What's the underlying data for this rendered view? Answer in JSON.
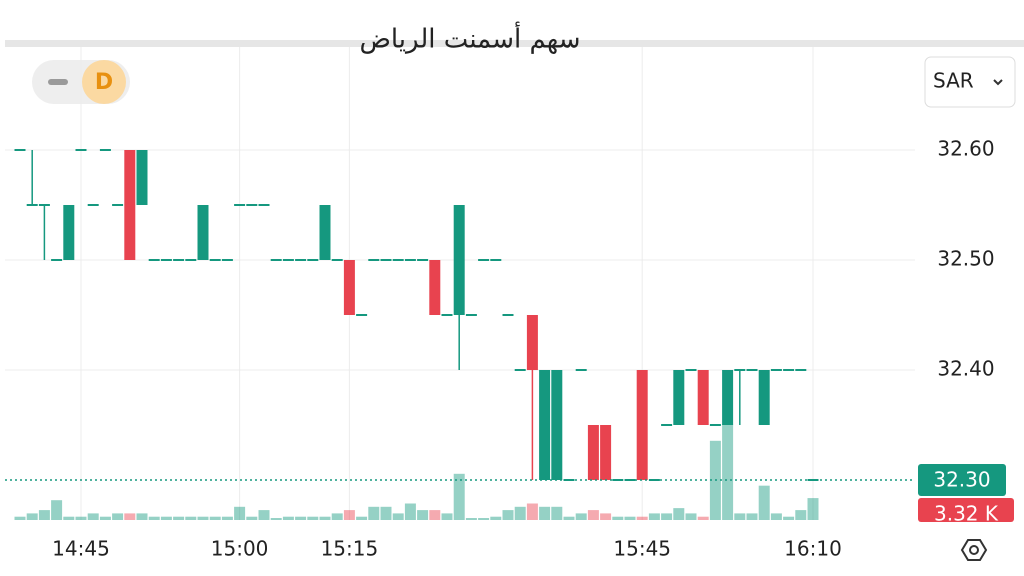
{
  "chart_data": {
    "type": "candlestick",
    "title": "سهم أسمنت الرياض",
    "interval": "D",
    "currency": "SAR",
    "up_color": "#15987f",
    "down_color": "#e8434f",
    "categories": [
      null,
      null,
      null,
      null,
      null,
      "14:45",
      null,
      null,
      null,
      null,
      null,
      null,
      null,
      null,
      null,
      null,
      null,
      null,
      "15:00",
      null,
      null,
      null,
      null,
      null,
      null,
      null,
      null,
      "15:15",
      null,
      null,
      null,
      null,
      null,
      null,
      null,
      null,
      null,
      null,
      null,
      null,
      null,
      null,
      null,
      null,
      null,
      null,
      null,
      null,
      null,
      null,
      null,
      "15:45",
      null,
      null,
      null,
      null,
      null,
      null,
      null,
      null,
      null,
      null,
      null,
      null,
      null,
      "16:10"
    ],
    "open": [
      32.6,
      32.55,
      32.55,
      32.5,
      32.5,
      32.6,
      32.55,
      32.6,
      32.55,
      32.6,
      32.55,
      32.5,
      32.5,
      32.5,
      32.5,
      32.5,
      32.5,
      32.5,
      32.55,
      32.55,
      32.55,
      32.5,
      32.5,
      32.5,
      32.5,
      32.5,
      32.5,
      32.5,
      32.45,
      32.5,
      32.5,
      32.5,
      32.5,
      32.5,
      32.5,
      32.45,
      32.45,
      32.45,
      32.5,
      32.5,
      32.45,
      32.4,
      32.45,
      32.3,
      32.3,
      32.3,
      32.4,
      32.35,
      32.35,
      32.3,
      32.3,
      32.4,
      32.3,
      32.35,
      32.35,
      32.4,
      32.4,
      32.35,
      32.35,
      32.4,
      32.4,
      32.35,
      32.4,
      32.4,
      32.4,
      32.3
    ],
    "high": [
      32.6,
      32.6,
      32.55,
      32.5,
      32.55,
      32.6,
      32.55,
      32.6,
      32.55,
      32.6,
      32.6,
      32.5,
      32.5,
      32.5,
      32.5,
      32.55,
      32.5,
      32.5,
      32.55,
      32.55,
      32.55,
      32.5,
      32.5,
      32.5,
      32.5,
      32.55,
      32.5,
      32.5,
      32.45,
      32.5,
      32.5,
      32.5,
      32.5,
      32.5,
      32.5,
      32.45,
      32.55,
      32.45,
      32.5,
      32.5,
      32.45,
      32.4,
      32.45,
      32.4,
      32.4,
      32.3,
      32.4,
      32.35,
      32.35,
      32.3,
      32.3,
      32.4,
      32.3,
      32.35,
      32.4,
      32.4,
      32.4,
      32.35,
      32.4,
      32.4,
      32.4,
      32.4,
      32.4,
      32.4,
      32.4,
      32.3
    ],
    "low": [
      32.6,
      32.55,
      32.5,
      32.5,
      32.5,
      32.6,
      32.55,
      32.6,
      32.55,
      32.5,
      32.55,
      32.5,
      32.5,
      32.5,
      32.5,
      32.5,
      32.5,
      32.5,
      32.55,
      32.55,
      32.55,
      32.5,
      32.5,
      32.5,
      32.5,
      32.5,
      32.5,
      32.45,
      32.45,
      32.5,
      32.5,
      32.5,
      32.5,
      32.5,
      32.45,
      32.45,
      32.4,
      32.45,
      32.5,
      32.5,
      32.45,
      32.4,
      32.3,
      32.3,
      32.3,
      32.3,
      32.4,
      32.3,
      32.3,
      32.3,
      32.3,
      32.3,
      32.3,
      32.35,
      32.35,
      32.4,
      32.35,
      32.35,
      32.35,
      32.35,
      32.4,
      32.35,
      32.4,
      32.4,
      32.4,
      32.3
    ],
    "close": [
      32.6,
      32.55,
      32.55,
      32.5,
      32.55,
      32.6,
      32.55,
      32.6,
      32.55,
      32.5,
      32.6,
      32.5,
      32.5,
      32.5,
      32.5,
      32.55,
      32.5,
      32.5,
      32.55,
      32.55,
      32.55,
      32.5,
      32.5,
      32.5,
      32.5,
      32.55,
      32.5,
      32.45,
      32.45,
      32.5,
      32.5,
      32.5,
      32.5,
      32.5,
      32.45,
      32.45,
      32.55,
      32.45,
      32.5,
      32.5,
      32.45,
      32.4,
      32.4,
      32.4,
      32.4,
      32.3,
      32.4,
      32.3,
      32.3,
      32.3,
      32.3,
      32.3,
      32.3,
      32.35,
      32.4,
      32.4,
      32.35,
      32.35,
      32.4,
      32.4,
      32.4,
      32.4,
      32.4,
      32.4,
      32.4,
      32.3
    ],
    "volumes": [
      0.5,
      1,
      1.5,
      3,
      0.5,
      0.5,
      1,
      0.5,
      1,
      1,
      1,
      0.5,
      0.5,
      0.5,
      0.5,
      0.5,
      0.5,
      0.5,
      2,
      0.5,
      1.5,
      0.3,
      0.5,
      0.5,
      0.5,
      0.5,
      1,
      1.5,
      0.5,
      2,
      2,
      1,
      2.5,
      1.5,
      1.5,
      1,
      7,
      0.3,
      0.3,
      0.5,
      1.5,
      2,
      2.5,
      2,
      2,
      0.5,
      1,
      1.5,
      1,
      0.5,
      0.5,
      0.5,
      1,
      1,
      1.8,
      1,
      0.5,
      12,
      14.5,
      1,
      1,
      5.2,
      1,
      0.5,
      1.5,
      3.32
    ],
    "vlim": [
      0,
      20
    ],
    "ylim": [
      32.25,
      32.7
    ],
    "yticks": [
      {
        "value": 32.6,
        "label": "32.60"
      },
      {
        "value": 32.5,
        "label": "32.50"
      },
      {
        "value": 32.4,
        "label": "32.40"
      }
    ],
    "last_price": {
      "value": 32.3,
      "label": "32.30"
    },
    "last_volume": {
      "value": 3.32,
      "label": "3.32 K"
    },
    "grid": true
  }
}
